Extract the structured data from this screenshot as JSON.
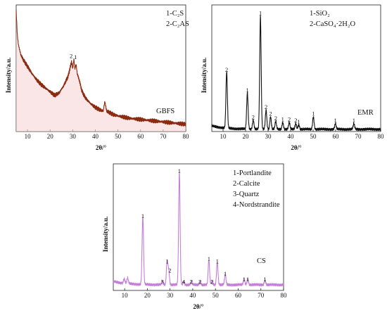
{
  "chart_data": [
    {
      "type": "line",
      "name": "GBFS",
      "sample_label": "GBFS",
      "ylabel": "Intensity/a.u.",
      "xlabel": "2θ/°",
      "xlim": [
        5,
        80
      ],
      "xticks": [
        "10",
        "20",
        "30",
        "40",
        "50",
        "60",
        "70",
        "80"
      ],
      "legend": [
        "1-C₂S",
        "2-C₂AS"
      ],
      "color": "#8b2b12",
      "fill": "#f7d6d6",
      "series": [
        {
          "x": [
            5,
            5.5,
            6,
            7,
            8,
            10,
            12,
            14,
            16,
            18,
            20,
            22,
            24,
            26,
            27,
            28,
            29,
            29.5,
            30,
            30.5,
            31,
            31.5,
            32,
            33,
            34,
            35,
            36,
            38,
            40,
            42,
            43.5,
            44.2,
            45,
            46,
            48,
            50,
            55,
            60,
            65,
            70,
            75,
            80
          ],
          "y": [
            100,
            80,
            72,
            64,
            60,
            54,
            48,
            43,
            39,
            36,
            33,
            30,
            32,
            38,
            42,
            46,
            54,
            58,
            52,
            60,
            52,
            56,
            48,
            42,
            34,
            30,
            27,
            23,
            20,
            18,
            17,
            25,
            17,
            16,
            14,
            13,
            11,
            10,
            9,
            8,
            7,
            6
          ]
        }
      ],
      "peak_labels": [
        {
          "text": "2",
          "x": 29.3,
          "y": 61
        },
        {
          "text": "1",
          "x": 31.2,
          "y": 60
        }
      ]
    },
    {
      "type": "line",
      "name": "EMR",
      "sample_label": "EMR",
      "ylabel": "Intensity/a.u.",
      "xlabel": "2θ/°",
      "xlim": [
        5,
        80
      ],
      "xticks": [
        "10",
        "20",
        "30",
        "40",
        "50",
        "60",
        "70",
        "80"
      ],
      "legend": [
        "1-SiO₂",
        "2-CaSO₄·2H₂O"
      ],
      "color": "#111111",
      "series": [
        {
          "peaks": [
            [
              11.6,
              50
            ],
            [
              20.8,
              32
            ],
            [
              23.4,
              8
            ],
            [
              26.6,
              100
            ],
            [
              29.1,
              17
            ],
            [
              31.1,
              11
            ],
            [
              33.4,
              7
            ],
            [
              36.5,
              6
            ],
            [
              39.4,
              6
            ],
            [
              42.3,
              5
            ],
            [
              43.6,
              4
            ],
            [
              50.1,
              11
            ],
            [
              59.9,
              5
            ],
            [
              68.1,
              5
            ]
          ],
          "baseline": 2
        }
      ],
      "peak_labels": [
        {
          "text": "2",
          "x": 11.6,
          "y": 53
        },
        {
          "text": "1",
          "x": 20.8,
          "y": 35
        },
        {
          "text": "2",
          "x": 23.4,
          "y": 11
        },
        {
          "text": "1",
          "x": 26.6,
          "y": 103
        },
        {
          "text": "2",
          "x": 29.1,
          "y": 20
        },
        {
          "text": "2",
          "x": 31.1,
          "y": 14
        },
        {
          "text": "2",
          "x": 33.4,
          "y": 10
        },
        {
          "text": "1",
          "x": 36.5,
          "y": 9
        },
        {
          "text": "2",
          "x": 39.4,
          "y": 9
        },
        {
          "text": "2",
          "x": 42.3,
          "y": 8
        },
        {
          "text": "1",
          "x": 43.6,
          "y": 7
        },
        {
          "text": "1",
          "x": 50.1,
          "y": 14
        },
        {
          "text": "1",
          "x": 59.9,
          "y": 8
        },
        {
          "text": "1",
          "x": 68.1,
          "y": 8
        }
      ]
    },
    {
      "type": "line",
      "name": "CS",
      "sample_label": "CS",
      "ylabel": "Intensity/a.u.",
      "xlabel": "2θ/°",
      "xlim": [
        5,
        80
      ],
      "xticks": [
        "10",
        "20",
        "30",
        "40",
        "50",
        "60",
        "70",
        "80"
      ],
      "legend": [
        "1-Portlandite",
        "2-Calcite",
        "3-Quartz",
        "4-Nordstrandite"
      ],
      "color": "#c47fd6",
      "series": [
        {
          "peaks": [
            [
              9.8,
              4
            ],
            [
              11.3,
              5
            ],
            [
              18.0,
              60
            ],
            [
              26.6,
              3
            ],
            [
              28.7,
              20
            ],
            [
              29.4,
              13
            ],
            [
              34.1,
              100
            ],
            [
              36.0,
              3
            ],
            [
              39.4,
              3
            ],
            [
              43.2,
              3
            ],
            [
              47.1,
              22
            ],
            [
              48.5,
              3
            ],
            [
              50.8,
              20
            ],
            [
              54.3,
              9
            ],
            [
              62.6,
              5
            ],
            [
              64.2,
              5
            ],
            [
              71.8,
              4
            ]
          ],
          "baseline": 5
        }
      ],
      "peak_labels": [
        {
          "text": "1",
          "x": 18.0,
          "y": 64
        },
        {
          "text": "3",
          "x": 26.6,
          "y": 6
        },
        {
          "text": "1",
          "x": 28.7,
          "y": 24
        },
        {
          "text": "2",
          "x": 29.9,
          "y": 16
        },
        {
          "text": "1",
          "x": 34.1,
          "y": 104
        },
        {
          "text": "4",
          "x": 36.0,
          "y": 6
        },
        {
          "text": "2",
          "x": 39.4,
          "y": 6
        },
        {
          "text": "2",
          "x": 43.2,
          "y": 6
        },
        {
          "text": "1",
          "x": 47.1,
          "y": 26
        },
        {
          "text": "2",
          "x": 48.5,
          "y": 6
        },
        {
          "text": "1",
          "x": 50.8,
          "y": 24
        },
        {
          "text": "1",
          "x": 54.3,
          "y": 13
        },
        {
          "text": "1",
          "x": 62.6,
          "y": 8
        },
        {
          "text": "1",
          "x": 64.2,
          "y": 8
        },
        {
          "text": "1",
          "x": 71.8,
          "y": 8
        }
      ]
    }
  ]
}
